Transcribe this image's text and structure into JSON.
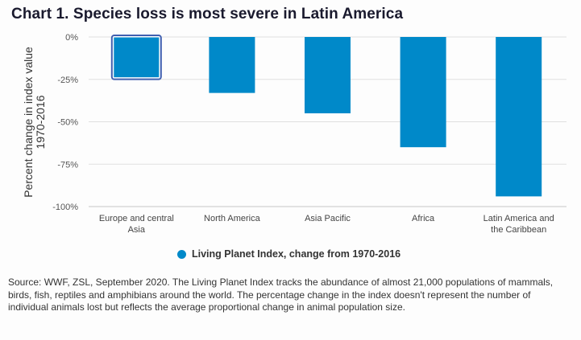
{
  "title": "Chart 1. Species loss is most severe in Latin America",
  "legend": {
    "label": "Living Planet Index, change from 1970-2016",
    "color": "#0089c9"
  },
  "source": "Source: WWF, ZSL, September 2020. The Living Planet Index tracks the abundance of almost 21,000 populations of mammals, birds, fish, reptiles and amphibians around the world. The percentage change in the index doesn't represent the number of individual animals lost but reflects the average proportional change in animal population size.",
  "chart_data": {
    "type": "bar",
    "title": "Chart 1. Species loss is most severe in Latin America",
    "xlabel": "",
    "ylabel": [
      "Percent change in index value",
      "1970-2016"
    ],
    "ylim": [
      -100,
      0
    ],
    "yticks": [
      0,
      -25,
      -50,
      -75,
      -100
    ],
    "ytick_labels": [
      "0%",
      "-25%",
      "-50%",
      "-75%",
      "-100%"
    ],
    "grid": true,
    "legend_position": "bottom-center",
    "categories": [
      [
        "Europe and central",
        "Asia"
      ],
      [
        "North America"
      ],
      [
        "Asia Pacific"
      ],
      [
        "Africa"
      ],
      [
        "Latin America and",
        "the Caribbean"
      ]
    ],
    "series": [
      {
        "name": "Living Planet Index, change from 1970-2016",
        "color": "#0089c9",
        "values": [
          -24,
          -33,
          -45,
          -65,
          -94
        ]
      }
    ],
    "highlighted_index": 0,
    "highlight_color": "#3f5fb0"
  }
}
